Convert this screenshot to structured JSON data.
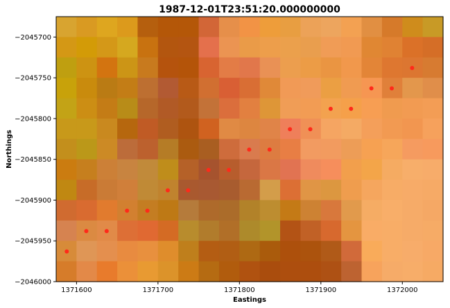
{
  "chart_data": {
    "type": "heatmap",
    "title": "1987-12-01T23:51:20.000000000",
    "xlabel": "Eastings",
    "ylabel": "Northings",
    "xlim": [
      1371575,
      1372050
    ],
    "ylim": [
      -2046000,
      -2045675
    ],
    "xticks": [
      {
        "value": 1371600,
        "label": "1371600"
      },
      {
        "value": 1371700,
        "label": "1371700"
      },
      {
        "value": 1371800,
        "label": "1371800"
      },
      {
        "value": 1371900,
        "label": "1371900"
      },
      {
        "value": 1372000,
        "label": "1372000"
      }
    ],
    "yticks": [
      {
        "value": -2045700,
        "label": "−2045700"
      },
      {
        "value": -2045750,
        "label": "−2045750"
      },
      {
        "value": -2045800,
        "label": "−2045800"
      },
      {
        "value": -2045850,
        "label": "−2045850"
      },
      {
        "value": -2045900,
        "label": "−2045900"
      },
      {
        "value": -2045950,
        "label": "−2045950"
      },
      {
        "value": -2046000,
        "label": "−2046000"
      }
    ],
    "grid": {
      "x0": 1371575,
      "dx": 25,
      "cols": 19,
      "y0": -2045675,
      "dy": -25,
      "rows": 13,
      "colors": [
        [
          "#d8a430",
          "#d99a22",
          "#dea61f",
          "#dc9a1c",
          "#b55f0e",
          "#b45708",
          "#b45708",
          "#d26637",
          "#e68f4a",
          "#f29345",
          "#ee9d3a",
          "#e89e41",
          "#eca258",
          "#eda55e",
          "#f3a152",
          "#e18f42",
          "#d67a2a",
          "#cf8c1c",
          "#c89a26"
        ],
        [
          "#d49815",
          "#d39b07",
          "#d49818",
          "#d5a81f",
          "#c87210",
          "#b3560f",
          "#b45511",
          "#e4704c",
          "#eb9452",
          "#ea9b48",
          "#ed9e4b",
          "#eba04c",
          "#e99e4e",
          "#f09c56",
          "#f19a52",
          "#e08733",
          "#e08233",
          "#db7128",
          "#d56e27"
        ],
        [
          "#bf9f10",
          "#cd9312",
          "#d37410",
          "#cc9516",
          "#c87a1e",
          "#b5530d",
          "#b45409",
          "#d86431",
          "#e37c46",
          "#e1774b",
          "#e99155",
          "#ec9e4e",
          "#ec9c46",
          "#ea9542",
          "#f1984c",
          "#e38537",
          "#de7730",
          "#dc7631",
          "#d77b31"
        ],
        [
          "#c8a20a",
          "#c98b0d",
          "#ba7b14",
          "#c37d16",
          "#bd6f31",
          "#b25a33",
          "#b85a16",
          "#d16f31",
          "#d95f34",
          "#d96e34",
          "#e08938",
          "#f19a56",
          "#f09b5a",
          "#eb9f43",
          "#f09b51",
          "#f69652",
          "#e0803a",
          "#e3974c",
          "#e08e4a"
        ],
        [
          "#c3a316",
          "#cc8e14",
          "#c47c16",
          "#b88c18",
          "#b6672a",
          "#b15a26",
          "#b25a1c",
          "#c37238",
          "#db6e3c",
          "#e28040",
          "#de9637",
          "#f09d56",
          "#f29c54",
          "#f3a24f",
          "#f5a04a",
          "#f79e53",
          "#f09b4f",
          "#f29b52",
          "#f39d55"
        ],
        [
          "#c8991a",
          "#c8991a",
          "#c9891f",
          "#b6670e",
          "#c05b25",
          "#b05d20",
          "#ae5410",
          "#d06220",
          "#e08a44",
          "#dd8640",
          "#e08448",
          "#ef7f5a",
          "#f09056",
          "#f5a562",
          "#f4aa64",
          "#f49f5a",
          "#f29a52",
          "#f29650",
          "#f6a15c"
        ],
        [
          "#c38f1c",
          "#bb9819",
          "#cc8a25",
          "#bc6c3a",
          "#bc612e",
          "#b57c26",
          "#ab5b10",
          "#a95e21",
          "#ce6c3c",
          "#d97b4e",
          "#dd7c41",
          "#e87e44",
          "#f29b61",
          "#f29b5f",
          "#ed9d57",
          "#f6a152",
          "#f6a65a",
          "#f59b60",
          "#f79a5d"
        ],
        [
          "#cb7c10",
          "#c67f1e",
          "#cc8037",
          "#c88440",
          "#c18a3a",
          "#bf8d1b",
          "#b56128",
          "#a6532e",
          "#b75d2d",
          "#c5673d",
          "#da7745",
          "#e17352",
          "#ef8b5d",
          "#f68e5c",
          "#f29f4c",
          "#f3a549",
          "#f5ab62",
          "#f7ae6a",
          "#f7ac6a"
        ],
        [
          "#c08812",
          "#c76c28",
          "#ca7b36",
          "#d07f3a",
          "#c08a36",
          "#c0832e",
          "#a9592f",
          "#a85932",
          "#a85c2f",
          "#b96a32",
          "#d39d4a",
          "#dc6f34",
          "#e09545",
          "#dc9740",
          "#ef9d4e",
          "#f5a65e",
          "#f7ac66",
          "#f7ab68",
          "#f6aa66"
        ],
        [
          "#d06b30",
          "#d96b30",
          "#e17b2e",
          "#d28030",
          "#c47d22",
          "#be7915",
          "#b57b3b",
          "#ae6a2b",
          "#ab6c2a",
          "#b28229",
          "#bd8d30",
          "#c47a16",
          "#cd8233",
          "#d8783c",
          "#e19a4c",
          "#f5ac64",
          "#f8ae69",
          "#f6ab68",
          "#f5a865"
        ],
        [
          "#d68350",
          "#db8a42",
          "#e18a48",
          "#dd6f36",
          "#e06932",
          "#d46b24",
          "#b88c2d",
          "#b17c2c",
          "#b16f28",
          "#ad8a2b",
          "#b2942a",
          "#b35315",
          "#c16126",
          "#d7692e",
          "#e49540",
          "#f9ac66",
          "#f8ad67",
          "#f6ab68",
          "#f6ab66"
        ],
        [
          "#d78b39",
          "#df9656",
          "#e48f4e",
          "#e88b40",
          "#e8903e",
          "#df8d2c",
          "#bf7f1c",
          "#b45d13",
          "#b15e14",
          "#ae6913",
          "#aa5b0c",
          "#ad500c",
          "#ac530d",
          "#b05a18",
          "#d16a3a",
          "#f9ab5a",
          "#f8ad67",
          "#f7ac6a",
          "#f7a966"
        ],
        [
          "#d67c2a",
          "#e38948",
          "#e87b2c",
          "#eb9039",
          "#e89a32",
          "#dc932a",
          "#cc7b15",
          "#b56b12",
          "#b15c0d",
          "#b05210",
          "#aa4d0d",
          "#ad4e0e",
          "#ad4e0e",
          "#ae5114",
          "#bd6331",
          "#f7a35c",
          "#f6ab68",
          "#f7ad69",
          "#f6aa64"
        ]
      ]
    },
    "points": [
      {
        "x": 1371588,
        "y": -2045963
      },
      {
        "x": 1371612,
        "y": -2045938
      },
      {
        "x": 1371637,
        "y": -2045938
      },
      {
        "x": 1371662,
        "y": -2045913
      },
      {
        "x": 1371687,
        "y": -2045913
      },
      {
        "x": 1371712,
        "y": -2045888
      },
      {
        "x": 1371737,
        "y": -2045888
      },
      {
        "x": 1371762,
        "y": -2045863
      },
      {
        "x": 1371787,
        "y": -2045863
      },
      {
        "x": 1371812,
        "y": -2045838
      },
      {
        "x": 1371837,
        "y": -2045838
      },
      {
        "x": 1371862,
        "y": -2045813
      },
      {
        "x": 1371887,
        "y": -2045813
      },
      {
        "x": 1371912,
        "y": -2045788
      },
      {
        "x": 1371937,
        "y": -2045788
      },
      {
        "x": 1371962,
        "y": -2045763
      },
      {
        "x": 1371987,
        "y": -2045763
      },
      {
        "x": 1372012,
        "y": -2045738
      }
    ],
    "point_color": "#ff2a1a"
  }
}
